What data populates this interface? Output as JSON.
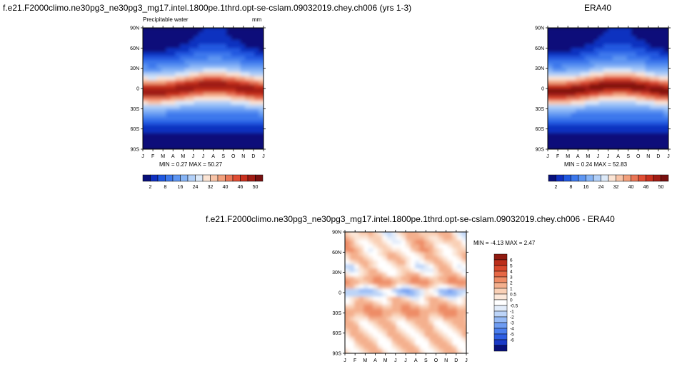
{
  "colors": {
    "seq": [
      "#08107a",
      "#1030c0",
      "#2058e0",
      "#3c78ec",
      "#5e96f2",
      "#86b4f6",
      "#b2d0f8",
      "#dce9f8",
      "#fbe4d4",
      "#f8c4a8",
      "#f2a07c",
      "#ea7656",
      "#e04e34",
      "#c8301e",
      "#a01c14",
      "#781010"
    ],
    "diff": [
      "#08107a",
      "#1a3ac8",
      "#2e5ee2",
      "#4a7eee",
      "#6e9cf2",
      "#96baf6",
      "#bcd4f8",
      "#e2ecfa",
      "#ffffff",
      "#fce8da",
      "#f9d0b6",
      "#f4b08e",
      "#ee8c66",
      "#e66846",
      "#d8482c",
      "#bc2e1a",
      "#901a10"
    ]
  },
  "chart_data": [
    {
      "type": "heatmap",
      "title": "f.e21.F2000climo.ne30pg3_ne30pg3_mg17.intel.1800pe.1thrd.opt-se-cslam.09032019.chey.ch006 (yrs 1-3)",
      "subtitle_left": "Precipitable water",
      "units": "mm",
      "x": [
        "J",
        "F",
        "M",
        "A",
        "M",
        "J",
        "J",
        "A",
        "S",
        "O",
        "N",
        "D",
        "J"
      ],
      "y": [
        "90N",
        "60N",
        "30N",
        "0",
        "30S",
        "60S",
        "90S"
      ],
      "stats": "MIN =   0.27 MAX =  50.27",
      "colorbar": {
        "labels": [
          "2",
          "8",
          "16",
          "24",
          "32",
          "40",
          "46",
          "50"
        ]
      },
      "ylim": [
        -90,
        90
      ]
    },
    {
      "type": "heatmap",
      "title": "ERA40",
      "x": [
        "J",
        "F",
        "M",
        "A",
        "M",
        "J",
        "J",
        "A",
        "S",
        "O",
        "N",
        "D",
        "J"
      ],
      "y": [
        "90N",
        "60N",
        "30N",
        "0",
        "30S",
        "60S",
        "90S"
      ],
      "stats": "MIN =   0.24 MAX =  52.83",
      "colorbar": {
        "labels": [
          "2",
          "8",
          "16",
          "24",
          "32",
          "40",
          "46",
          "50"
        ]
      },
      "ylim": [
        -90,
        90
      ]
    },
    {
      "type": "heatmap",
      "title": "f.e21.F2000climo.ne30pg3_ne30pg3_mg17.intel.1800pe.1thrd.opt-se-cslam.09032019.chey.ch006 - ERA40",
      "x": [
        "J",
        "F",
        "M",
        "A",
        "M",
        "J",
        "J",
        "A",
        "S",
        "O",
        "N",
        "D",
        "J"
      ],
      "y": [
        "90N",
        "60N",
        "30N",
        "0",
        "30S",
        "60S",
        "90S"
      ],
      "stats": "MIN =   -4.13 MAX =   2.47",
      "colorbar": {
        "labels": [
          "6",
          "5",
          "4",
          "3",
          "2",
          "1",
          "0.5",
          "0",
          "-0.5",
          "-1",
          "-2",
          "-3",
          "-4",
          "-5",
          "-6"
        ]
      },
      "ylim": [
        -90,
        90
      ]
    }
  ]
}
